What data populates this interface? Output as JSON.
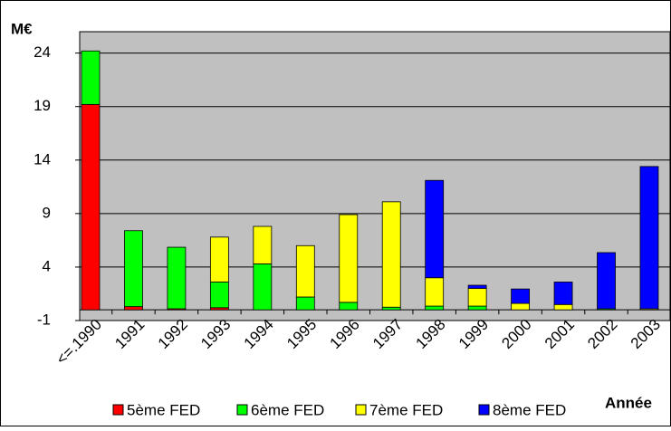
{
  "chart_data": {
    "type": "stacked_bar",
    "y_label": "M€",
    "x_label": "Année",
    "categories": [
      "<=.1990",
      "1991",
      "1992",
      "1993",
      "1994",
      "1995",
      "1996",
      "1997",
      "1998",
      "1999",
      "2000",
      "2001",
      "2002",
      "2003"
    ],
    "series": [
      {
        "name": "5ème FED",
        "color": "#ff0000",
        "values": [
          19.2,
          0.3,
          0.1,
          0.2,
          0,
          0,
          0,
          0,
          0,
          0,
          0,
          0,
          0,
          0
        ]
      },
      {
        "name": "6ème FED",
        "color": "#00ff00",
        "values": [
          5.0,
          7.1,
          5.75,
          2.4,
          4.3,
          1.2,
          0.7,
          0.25,
          0.35,
          0.35,
          0,
          0,
          0.1,
          0
        ]
      },
      {
        "name": "7ème FED",
        "color": "#ffff00",
        "values": [
          0,
          0,
          0,
          4.2,
          3.5,
          4.8,
          8.2,
          9.85,
          2.65,
          1.65,
          0.6,
          0.5,
          0,
          0.1
        ]
      },
      {
        "name": "8ème FED",
        "color": "#0000ff",
        "values": [
          0,
          0,
          0,
          0,
          0,
          0,
          0,
          0,
          9.1,
          0.3,
          1.35,
          2.1,
          5.25,
          13.3
        ]
      }
    ],
    "ylim": [
      -1,
      26
    ],
    "yticks": [
      -1,
      4,
      9,
      14,
      19,
      24
    ],
    "grid": true,
    "legend": "bottom"
  }
}
